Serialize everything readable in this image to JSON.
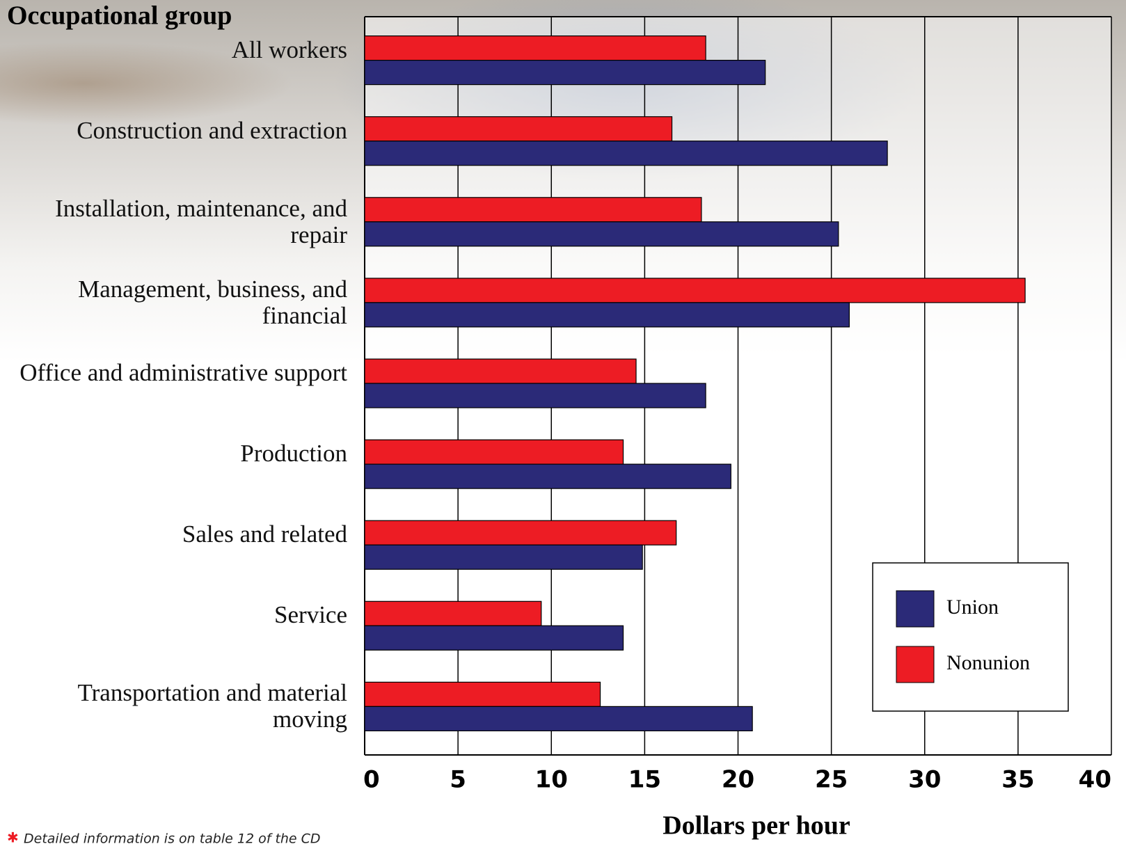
{
  "chart_data": {
    "type": "hbar",
    "y_axis_title": "Occupational group",
    "x_axis_title": "Dollars per hour",
    "footnote_marker": "✱",
    "footnote": "Detailed information is on table 12 of the CD",
    "categories": [
      "All workers",
      "Construction and extraction",
      "Installation, maintenance, and repair",
      "Management, business, and financial",
      "Office and administrative support",
      "Production",
      "Sales and related",
      "Service",
      "Transportation and material moving"
    ],
    "series": [
      {
        "name": "Union",
        "color": "#2b2a78",
        "values": [
          21.46,
          28.0,
          25.38,
          25.96,
          18.27,
          19.62,
          14.88,
          13.85,
          20.77
        ]
      },
      {
        "name": "Nonunion",
        "color": "#ed1c24",
        "values": [
          18.27,
          16.46,
          18.04,
          35.38,
          14.54,
          13.85,
          16.69,
          9.46,
          12.62
        ]
      }
    ],
    "xlim": [
      0,
      40
    ],
    "xticks": [
      0,
      5,
      10,
      15,
      20,
      25,
      30,
      35,
      40
    ],
    "grid": true,
    "legend": "bottom-right"
  }
}
